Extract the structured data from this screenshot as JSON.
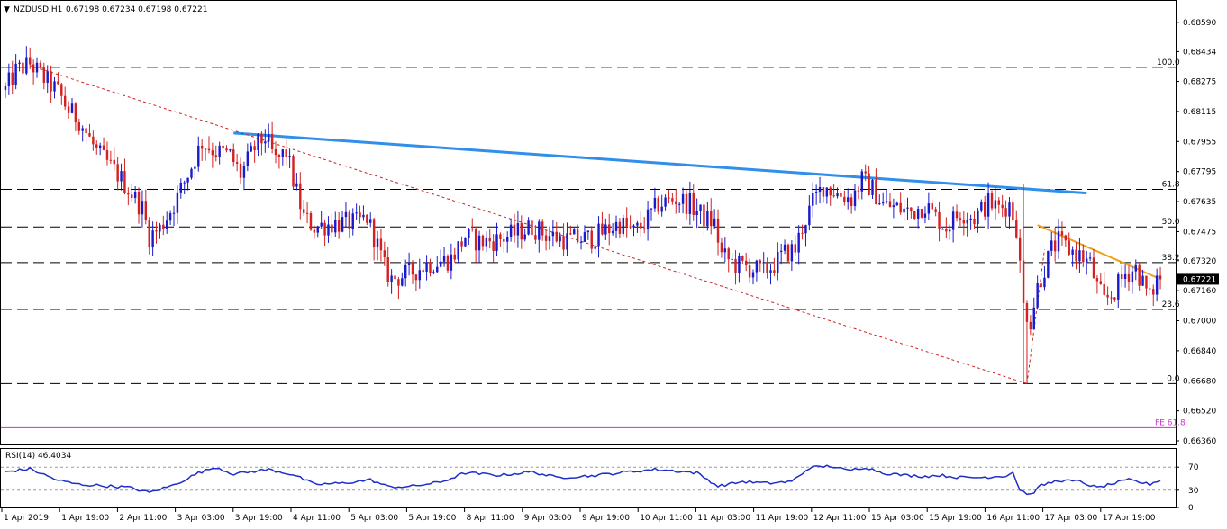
{
  "header": {
    "menu_glyph": "▼",
    "symbol": "NZDUSD,H1",
    "ohlc": "0.67198 0.67234 0.67198 0.67221"
  },
  "rsi_header": {
    "label": "RSI(14) 46.4034"
  },
  "colors": {
    "bull": "#1a1acc",
    "bear": "#d42020",
    "trend_blue": "#2f8fea",
    "trend_orange": "#f0a020",
    "dotted_red": "#cc2222",
    "fe_magenta": "#cc33cc",
    "rsi_line": "#1e2ec8",
    "price_box": "#000000"
  },
  "chart_data": [
    {
      "type": "candlestick",
      "ylim": [
        0.6636,
        0.6869
      ],
      "y_ticks": [
        "0.68590",
        "0.68434",
        "0.68275",
        "0.68115",
        "0.67955",
        "0.67795",
        "0.67635",
        "0.67475",
        "0.67320",
        "0.67160",
        "0.67000",
        "0.66840",
        "0.66680",
        "0.66520",
        "0.66360"
      ],
      "x_ticks": [
        "1 Apr 2019",
        "1 Apr 19:00",
        "2 Apr 11:00",
        "3 Apr 03:00",
        "3 Apr 19:00",
        "4 Apr 11:00",
        "5 Apr 03:00",
        "5 Apr 19:00",
        "8 Apr 11:00",
        "9 Apr 03:00",
        "9 Apr 19:00",
        "10 Apr 11:00",
        "11 Apr 03:00",
        "11 Apr 19:00",
        "12 Apr 11:00",
        "15 Apr 03:00",
        "15 Apr 19:00",
        "16 Apr 11:00",
        "17 Apr 03:00",
        "17 Apr 19:00"
      ],
      "current_price": "0.67221",
      "current_value": 0.67221,
      "price_path_anchors": [
        [
          0,
          0.6823
        ],
        [
          3,
          0.6833
        ],
        [
          7,
          0.6837
        ],
        [
          11,
          0.6829
        ],
        [
          15,
          0.6822
        ],
        [
          18,
          0.6812
        ],
        [
          21,
          0.6807
        ],
        [
          26,
          0.679
        ],
        [
          32,
          0.6778
        ],
        [
          39,
          0.676
        ],
        [
          41,
          0.6745
        ],
        [
          44,
          0.6749
        ],
        [
          48,
          0.6762
        ],
        [
          52,
          0.6778
        ],
        [
          56,
          0.6795
        ],
        [
          60,
          0.679
        ],
        [
          64,
          0.6788
        ],
        [
          67,
          0.6778
        ],
        [
          71,
          0.6792
        ],
        [
          74,
          0.6798
        ],
        [
          77,
          0.6785
        ],
        [
          80,
          0.679
        ],
        [
          82,
          0.6775
        ],
        [
          85,
          0.6755
        ],
        [
          88,
          0.675
        ],
        [
          94,
          0.6752
        ],
        [
          100,
          0.6752
        ],
        [
          103,
          0.6755
        ],
        [
          106,
          0.674
        ],
        [
          108,
          0.6728
        ],
        [
          110,
          0.6722
        ],
        [
          115,
          0.6725
        ],
        [
          120,
          0.673
        ],
        [
          127,
          0.6733
        ],
        [
          131,
          0.6745
        ],
        [
          135,
          0.6742
        ],
        [
          140,
          0.6743
        ],
        [
          146,
          0.6747
        ],
        [
          150,
          0.675
        ],
        [
          154,
          0.6746
        ],
        [
          160,
          0.6743
        ],
        [
          167,
          0.6744
        ],
        [
          171,
          0.6748
        ],
        [
          175,
          0.6752
        ],
        [
          179,
          0.6747
        ],
        [
          182,
          0.6752
        ],
        [
          186,
          0.6762
        ],
        [
          191,
          0.6765
        ],
        [
          195,
          0.6762
        ],
        [
          199,
          0.6755
        ],
        [
          202,
          0.6752
        ],
        [
          204,
          0.6735
        ],
        [
          208,
          0.673
        ],
        [
          212,
          0.6728
        ],
        [
          216,
          0.6726
        ],
        [
          219,
          0.673
        ],
        [
          222,
          0.6736
        ],
        [
          225,
          0.6738
        ],
        [
          227,
          0.675
        ],
        [
          230,
          0.6763
        ],
        [
          233,
          0.6772
        ],
        [
          237,
          0.6768
        ],
        [
          241,
          0.6765
        ],
        [
          244,
          0.6775
        ],
        [
          247,
          0.677
        ],
        [
          250,
          0.6762
        ],
        [
          254,
          0.676
        ],
        [
          258,
          0.6758
        ],
        [
          262,
          0.6762
        ],
        [
          265,
          0.6755
        ],
        [
          268,
          0.675
        ],
        [
          272,
          0.6758
        ],
        [
          276,
          0.6755
        ],
        [
          280,
          0.6763
        ],
        [
          283,
          0.676
        ],
        [
          286,
          0.6762
        ],
        [
          288,
          0.675
        ],
        [
          290,
          0.6708
        ],
        [
          292,
          0.67
        ],
        [
          294,
          0.6718
        ],
        [
          296,
          0.6728
        ],
        [
          298,
          0.6738
        ],
        [
          300,
          0.6742
        ],
        [
          303,
          0.6738
        ],
        [
          306,
          0.6735
        ],
        [
          309,
          0.673
        ],
        [
          311,
          0.6718
        ],
        [
          313,
          0.671
        ],
        [
          316,
          0.6716
        ],
        [
          319,
          0.6725
        ],
        [
          322,
          0.6728
        ],
        [
          324,
          0.672
        ],
        [
          326,
          0.6712
        ],
        [
          328,
          0.6722
        ]
      ],
      "candle_count": 330,
      "price_spikes": [
        {
          "index": 290,
          "low": 0.66665,
          "high": 0.6773
        },
        {
          "index": 291,
          "low": 0.66665
        },
        {
          "index": 293,
          "low": 0.6697
        }
      ],
      "fib_levels": [
        {
          "label": "100.0",
          "value": 0.6835
        },
        {
          "label": "61.8",
          "value": 0.677
        },
        {
          "label": "50.0",
          "value": 0.675
        },
        {
          "label": "38.2",
          "value": 0.6731
        },
        {
          "label": "23.6",
          "value": 0.6706
        },
        {
          "label": "0.0",
          "value": 0.66665
        }
      ],
      "fe_level": {
        "label": "FE 61.8",
        "value": 0.6643
      },
      "trendlines": [
        {
          "name": "blue",
          "from": [
            65,
            0.68
          ],
          "to": [
            308,
            0.6768
          ]
        },
        {
          "name": "orange",
          "from": [
            294,
            0.6751
          ],
          "to": [
            328,
            0.6723
          ]
        },
        {
          "name": "dotted_red",
          "from": [
            7,
            0.6836
          ],
          "to": [
            291,
            0.66665
          ]
        },
        {
          "name": "dotted_red_up",
          "from": [
            291,
            0.66665
          ],
          "to": [
            296,
            0.6738
          ]
        }
      ]
    },
    {
      "type": "line",
      "title": "RSI(14) 46.4034",
      "ylim": [
        0,
        100
      ],
      "y_ticks": [
        "70",
        "30",
        "0"
      ],
      "levels": [
        70,
        30
      ],
      "value_anchors": [
        [
          0,
          62
        ],
        [
          7,
          67
        ],
        [
          15,
          47
        ],
        [
          21,
          40
        ],
        [
          27,
          38
        ],
        [
          35,
          35
        ],
        [
          41,
          26
        ],
        [
          48,
          39
        ],
        [
          55,
          60
        ],
        [
          60,
          70
        ],
        [
          65,
          58
        ],
        [
          70,
          62
        ],
        [
          75,
          66
        ],
        [
          82,
          57
        ],
        [
          88,
          40
        ],
        [
          96,
          42
        ],
        [
          104,
          48
        ],
        [
          109,
          36
        ],
        [
          115,
          36
        ],
        [
          124,
          44
        ],
        [
          131,
          60
        ],
        [
          141,
          56
        ],
        [
          150,
          62
        ],
        [
          157,
          52
        ],
        [
          167,
          55
        ],
        [
          176,
          61
        ],
        [
          185,
          66
        ],
        [
          190,
          64
        ],
        [
          197,
          60
        ],
        [
          203,
          37
        ],
        [
          210,
          45
        ],
        [
          217,
          42
        ],
        [
          224,
          45
        ],
        [
          229,
          69
        ],
        [
          235,
          72
        ],
        [
          240,
          64
        ],
        [
          245,
          70
        ],
        [
          250,
          60
        ],
        [
          256,
          56
        ],
        [
          262,
          54
        ],
        [
          266,
          56
        ],
        [
          272,
          52
        ],
        [
          278,
          52
        ],
        [
          285,
          55
        ],
        [
          287,
          61
        ],
        [
          289,
          30
        ],
        [
          292,
          22
        ],
        [
          295,
          38
        ],
        [
          300,
          47
        ],
        [
          306,
          45
        ],
        [
          311,
          34
        ],
        [
          316,
          42
        ],
        [
          320,
          48
        ],
        [
          326,
          40
        ],
        [
          328,
          46
        ]
      ],
      "current_value": 46.4034
    }
  ]
}
